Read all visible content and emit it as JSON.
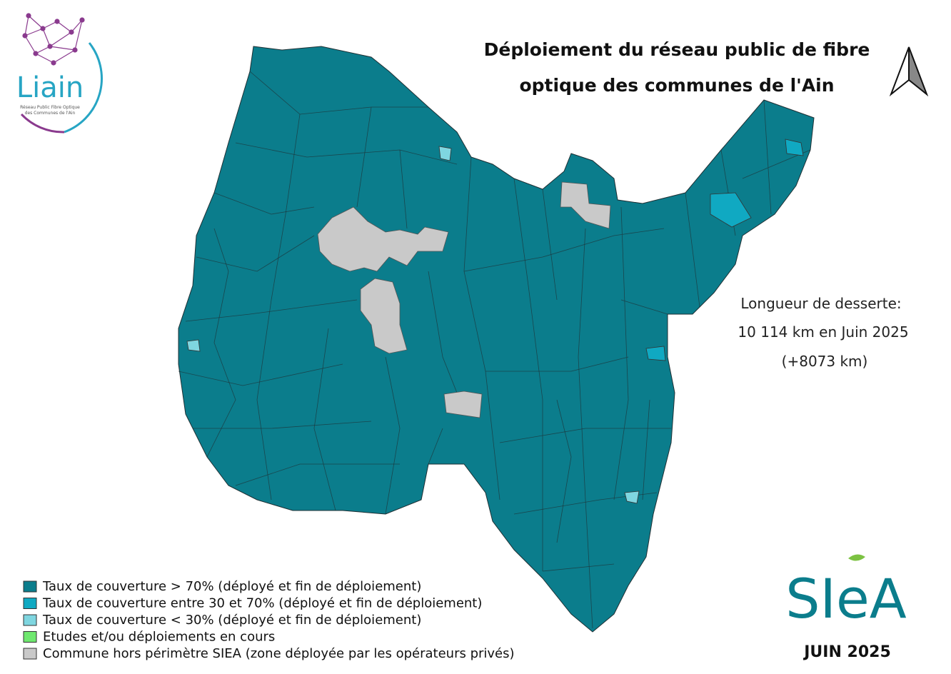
{
  "logo": {
    "name": "Liain",
    "tagline_1": "Réseau Public Fibre Optique",
    "tagline_2": "des Communes de l'Ain"
  },
  "title": {
    "line_1": "Déploiement du réseau public de fibre",
    "line_2": "optique des communes de l'Ain"
  },
  "stats": {
    "label": "Longueur de desserte:",
    "length": "10 114 km en Juin 2025",
    "increase": "(+8073 km)"
  },
  "legend": [
    {
      "label": "Taux de couverture > 70% (déployé et fin de déploiement)",
      "color": "#0b7d8c"
    },
    {
      "label": "Taux de couverture entre 30 et 70% (déployé et fin de déploiement)",
      "color": "#10a9c2"
    },
    {
      "label": "Taux de couverture < 30% (déployé et fin de déploiement)",
      "color": "#7fd6e0"
    },
    {
      "label": "Etudes et/ou déploiements en cours",
      "color": "#6fe86f"
    },
    {
      "label": "Commune hors périmètre SIEA (zone déployée par les opérateurs privés)",
      "color": "#c9c9c9"
    }
  ],
  "brand": {
    "name": "SIeA",
    "date": "JUIN 2025"
  }
}
